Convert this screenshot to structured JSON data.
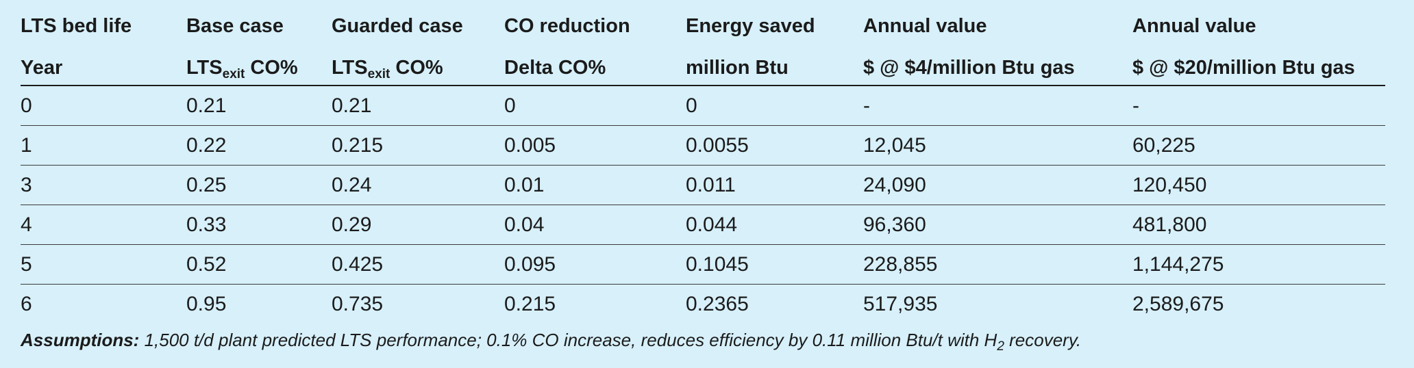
{
  "table": {
    "header_row1": [
      "LTS bed life",
      "Base case",
      "Guarded case",
      "CO reduction",
      "Energy saved",
      "Annual value",
      "Annual value"
    ],
    "header_row2": [
      {
        "pre": "Year",
        "sub": "",
        "post": ""
      },
      {
        "pre": "LTS",
        "sub": "exit",
        "post": " CO%"
      },
      {
        "pre": "LTS",
        "sub": "exit",
        "post": " CO%"
      },
      {
        "pre": "Delta CO%",
        "sub": "",
        "post": ""
      },
      {
        "pre": "million Btu",
        "sub": "",
        "post": ""
      },
      {
        "pre": "$ @ $4/million Btu gas",
        "sub": "",
        "post": ""
      },
      {
        "pre": "$ @ $20/million Btu gas",
        "sub": "",
        "post": ""
      }
    ],
    "rows": [
      [
        "0",
        "0.21",
        "0.21",
        "0",
        "0",
        "-",
        "-"
      ],
      [
        "1",
        "0.22",
        "0.215",
        "0.005",
        "0.0055",
        "12,045",
        "60,225"
      ],
      [
        "3",
        "0.25",
        "0.24",
        "0.01",
        "0.011",
        "24,090",
        "120,450"
      ],
      [
        "4",
        "0.33",
        "0.29",
        "0.04",
        "0.044",
        "96,360",
        "481,800"
      ],
      [
        "5",
        "0.52",
        "0.425",
        "0.095",
        "0.1045",
        "228,855",
        "1,144,275"
      ],
      [
        "6",
        "0.95",
        "0.735",
        "0.215",
        "0.2365",
        "517,935",
        "2,589,675"
      ]
    ]
  },
  "note": {
    "label": "Assumptions:",
    "text": " 1,500 t/d plant predicted LTS performance; 0.1% CO increase, reduces efficiency by 0.11 million Btu/t with H",
    "sub": "2",
    "end": " recovery."
  }
}
